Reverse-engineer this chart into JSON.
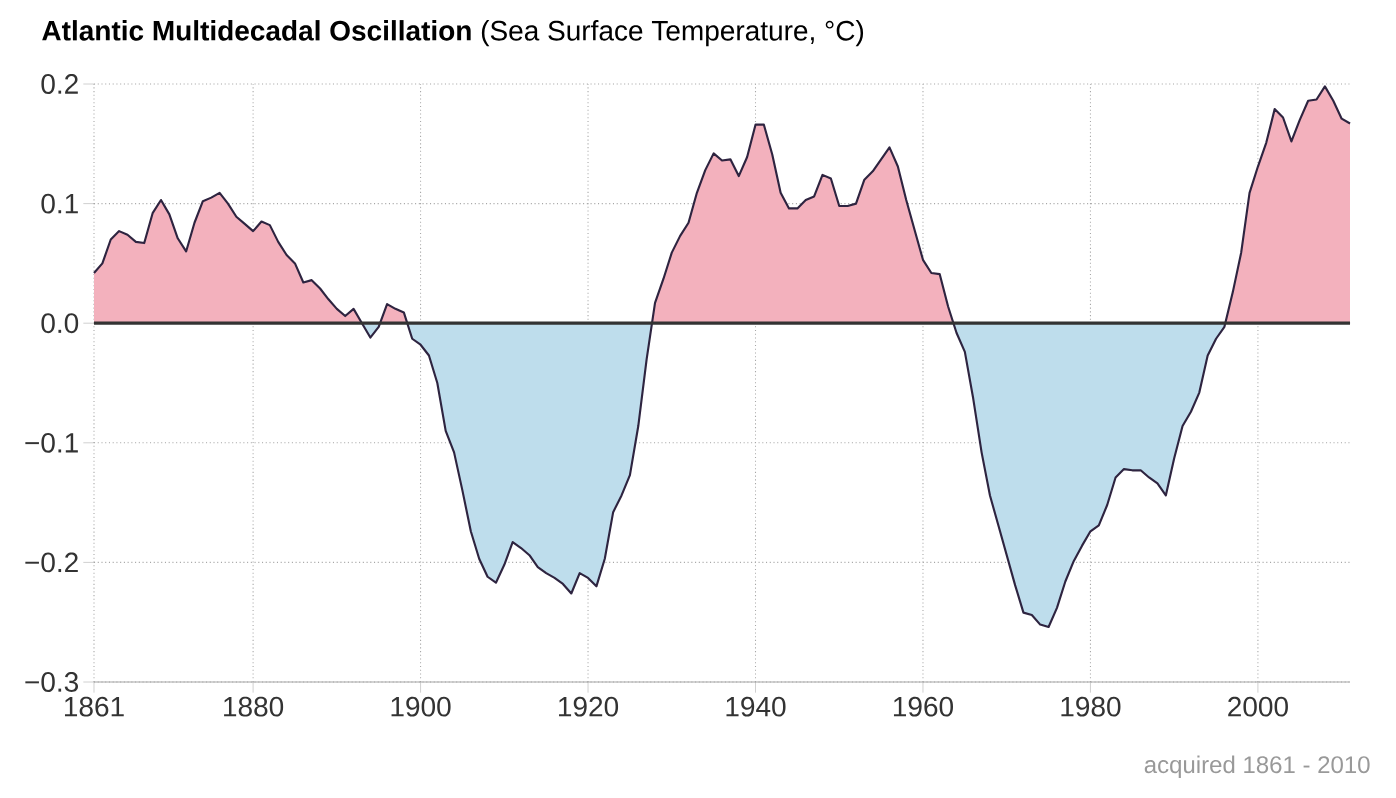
{
  "chart_data": {
    "type": "area",
    "title": "**Atlantic Multidecadal Oscillation** (Sea Surface Temperature, °C)",
    "annotations": [
      "acquired 1861 - 2010"
    ],
    "x": [
      1861,
      1862,
      1863,
      1864,
      1865,
      1866,
      1867,
      1868,
      1869,
      1870,
      1871,
      1872,
      1873,
      1874,
      1875,
      1876,
      1877,
      1878,
      1879,
      1880,
      1881,
      1882,
      1883,
      1884,
      1885,
      1886,
      1887,
      1888,
      1889,
      1890,
      1891,
      1892,
      1893,
      1894,
      1895,
      1896,
      1897,
      1898,
      1899,
      1900,
      1901,
      1902,
      1903,
      1904,
      1905,
      1906,
      1907,
      1908,
      1909,
      1910,
      1911,
      1912,
      1913,
      1914,
      1915,
      1916,
      1917,
      1918,
      1919,
      1920,
      1921,
      1922,
      1923,
      1924,
      1925,
      1926,
      1927,
      1928,
      1929,
      1930,
      1931,
      1932,
      1933,
      1934,
      1935,
      1936,
      1937,
      1938,
      1939,
      1940,
      1941,
      1942,
      1943,
      1944,
      1945,
      1946,
      1947,
      1948,
      1949,
      1950,
      1951,
      1952,
      1953,
      1954,
      1955,
      1956,
      1957,
      1958,
      1959,
      1960,
      1961,
      1962,
      1963,
      1964,
      1965,
      1966,
      1967,
      1968,
      1969,
      1970,
      1971,
      1972,
      1973,
      1974,
      1975,
      1976,
      1977,
      1978,
      1979,
      1980,
      1981,
      1982,
      1983,
      1984,
      1985,
      1986,
      1987,
      1988,
      1989,
      1990,
      1991,
      1992,
      1993,
      1994,
      1995,
      1996,
      1997,
      1998,
      1999,
      2000,
      2001,
      2002,
      2003,
      2004,
      2005,
      2006,
      2007,
      2008,
      2009,
      2010,
      2011
    ],
    "series": [
      {
        "color": "#f3b1bd",
        "values": [
          0.042,
          0.05,
          0.07,
          0.077,
          0.074,
          0.068,
          0.067,
          0.092,
          0.103,
          0.091,
          0.071,
          0.06,
          0.084,
          0.102,
          0.105,
          0.109,
          0.1,
          0.089,
          0.083,
          0.077,
          0.085,
          0.082,
          0.068,
          0.057,
          0.05,
          0.034,
          0.036,
          0.029,
          0.02,
          0.012,
          0.006,
          0.012,
          0.0,
          -0.012,
          -0.003,
          0.016,
          0.012,
          0.009,
          -0.013,
          -0.018,
          -0.027,
          -0.05,
          -0.09,
          -0.108,
          -0.14,
          -0.174,
          -0.197,
          -0.212,
          -0.217,
          -0.202,
          -0.183,
          -0.188,
          -0.194,
          -0.204,
          -0.209,
          -0.213,
          -0.218,
          -0.226,
          -0.209,
          -0.213,
          -0.22,
          -0.197,
          -0.158,
          -0.144,
          -0.127,
          -0.086,
          -0.03,
          0.017,
          0.037,
          0.059,
          0.073,
          0.084,
          0.109,
          0.128,
          0.142,
          0.136,
          0.137,
          0.123,
          0.139,
          0.166,
          0.166,
          0.141,
          0.109,
          0.096,
          0.096,
          0.103,
          0.106,
          0.124,
          0.121,
          0.098,
          0.098,
          0.1,
          0.12,
          0.127,
          0.137,
          0.147,
          0.131,
          0.103,
          0.078,
          0.053,
          0.042,
          0.041,
          0.014,
          -0.008,
          -0.024,
          -0.063,
          -0.108,
          -0.144,
          -0.169,
          -0.194,
          -0.219,
          -0.242,
          -0.244,
          -0.252,
          -0.254,
          -0.238,
          -0.216,
          -0.199,
          -0.186,
          -0.174,
          -0.169,
          -0.152,
          -0.129,
          -0.122,
          -0.123,
          -0.123,
          -0.129,
          -0.134,
          -0.144,
          -0.113,
          -0.086,
          -0.074,
          -0.058,
          -0.027,
          -0.013,
          -0.003,
          0.026,
          0.059,
          0.109,
          0.131,
          0.151,
          0.179,
          0.172,
          0.152,
          0.17,
          0.186,
          0.187,
          0.198,
          0.186,
          0.171,
          0.167
        ]
      }
    ],
    "xlim": [
      1861,
      2011
    ],
    "ylim": [
      -0.3,
      0.2
    ],
    "xticks": [
      1861,
      1880,
      1900,
      1920,
      1940,
      1960,
      1980,
      2000
    ],
    "yticks": [
      0.2,
      0.1,
      {
        "value": 0,
        "label": "0.0"
      },
      {
        "value": -0.1,
        "label": "−0.1"
      },
      {
        "value": -0.2,
        "label": "−0.2"
      },
      {
        "value": -0.3,
        "label": "−0.3"
      }
    ],
    "ref_lines": [
      {
        "axis": "y",
        "value": 0,
        "color": "#333333"
      }
    ],
    "grid": true
  }
}
